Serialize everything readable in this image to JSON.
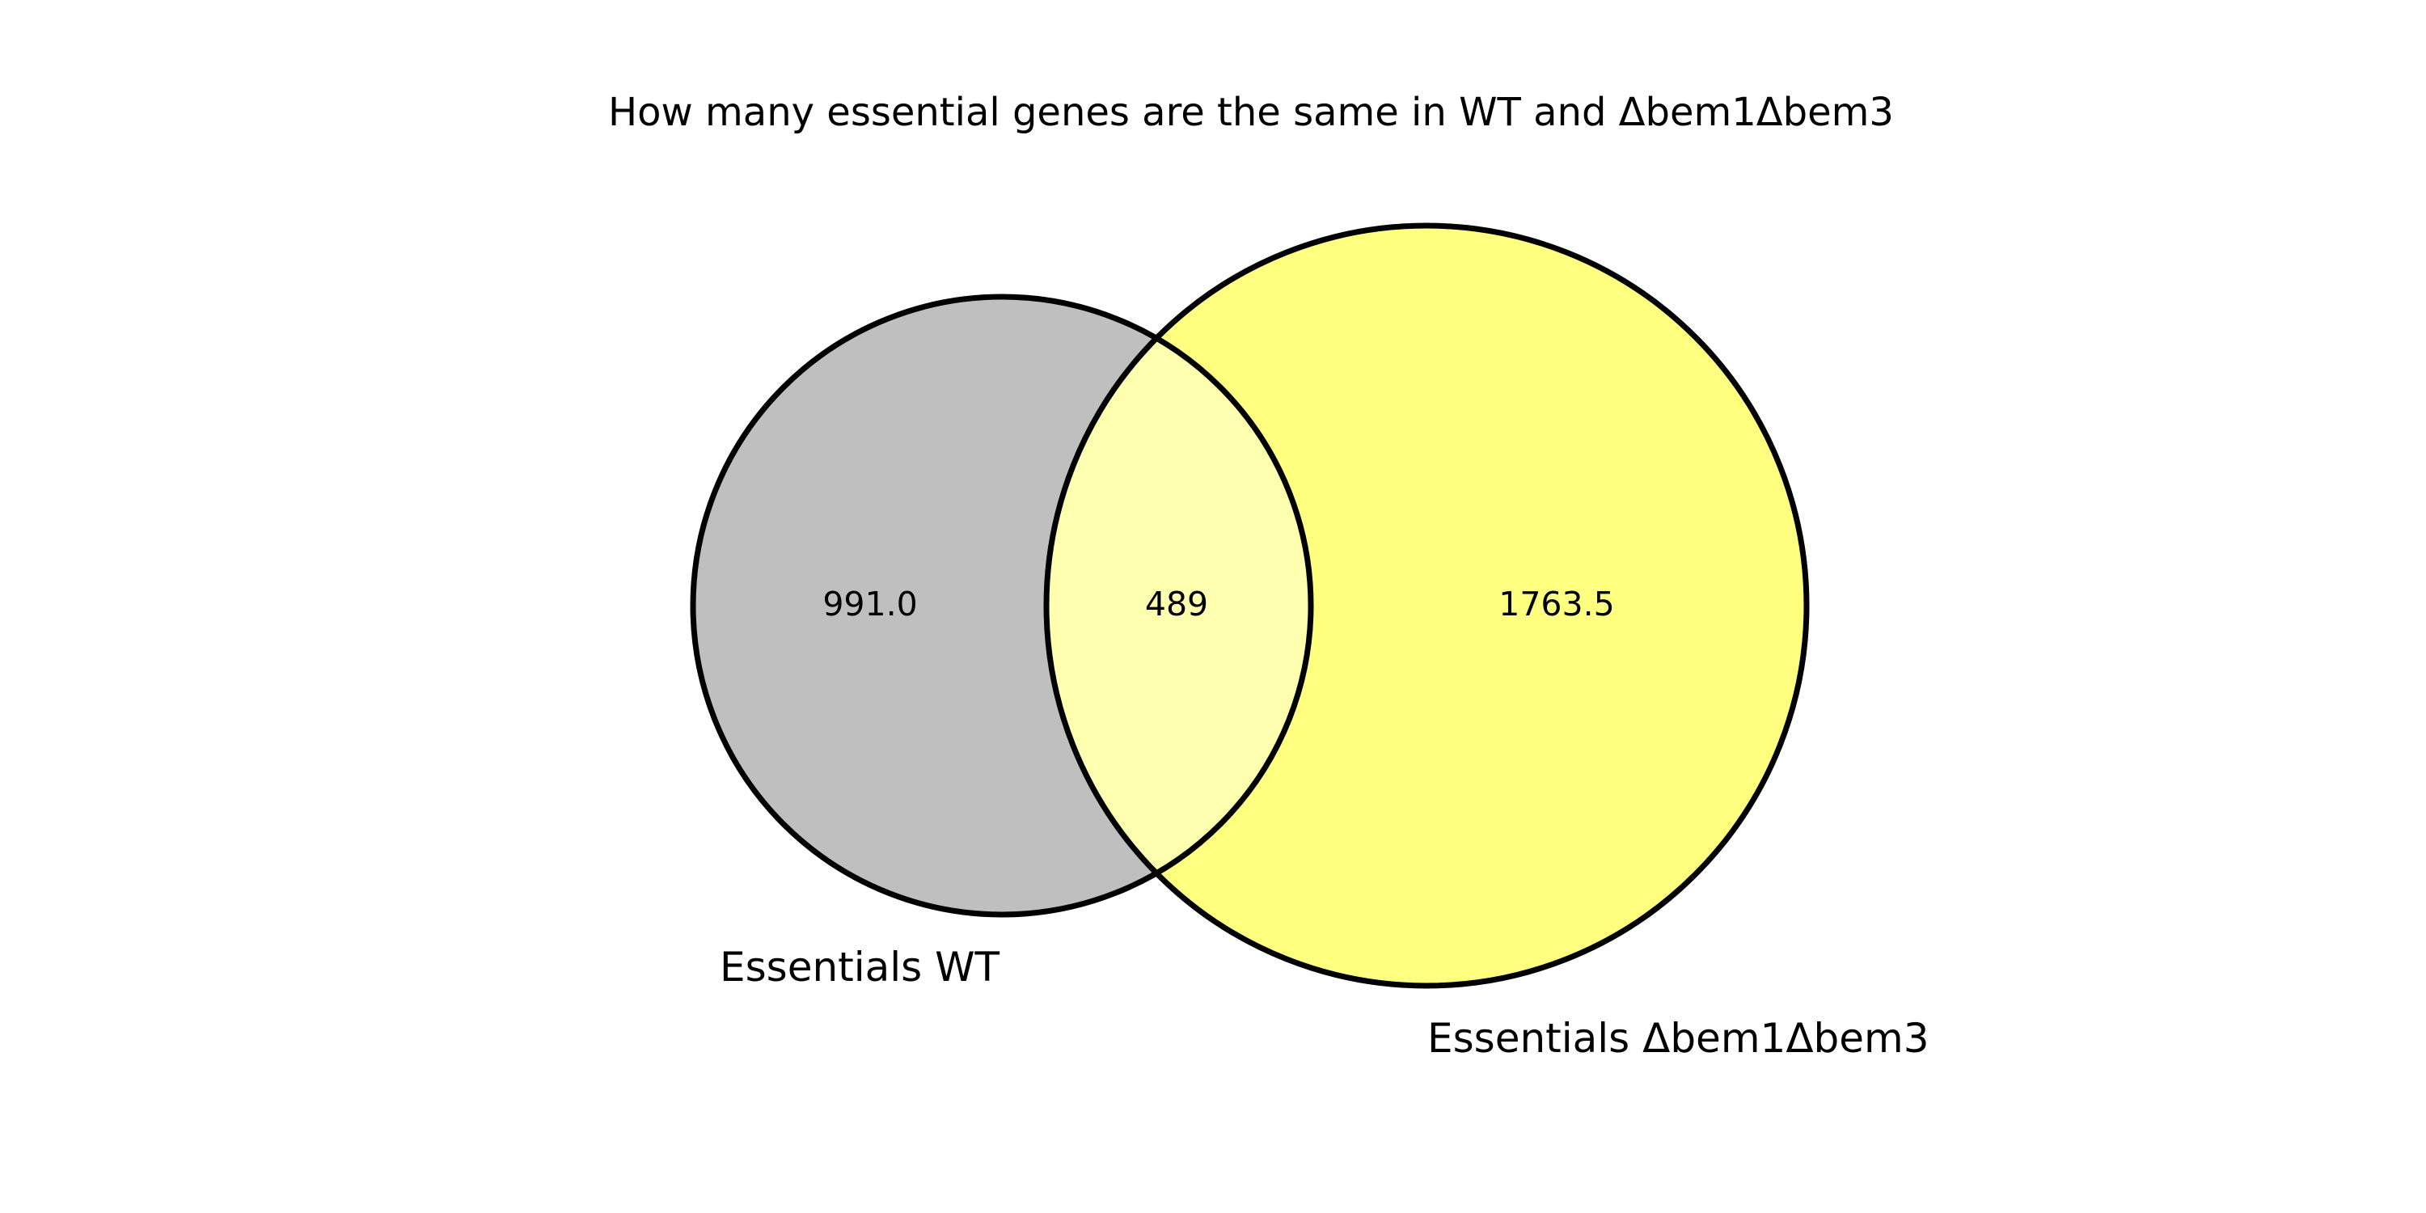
{
  "title": "How many essential genes are the same in WT and Δbem1Δbem3",
  "sets": [
    {
      "name": "Essentials WT",
      "only_count": "991.0",
      "fill_color": "#bfbfbf"
    },
    {
      "name": "Essentials Δbem1Δbem3",
      "only_count": "1763.5",
      "fill_color": "#ffff80"
    }
  ],
  "overlap": {
    "count": "489",
    "fill_color": "#ffffb0"
  },
  "outline_color": "#000000"
}
